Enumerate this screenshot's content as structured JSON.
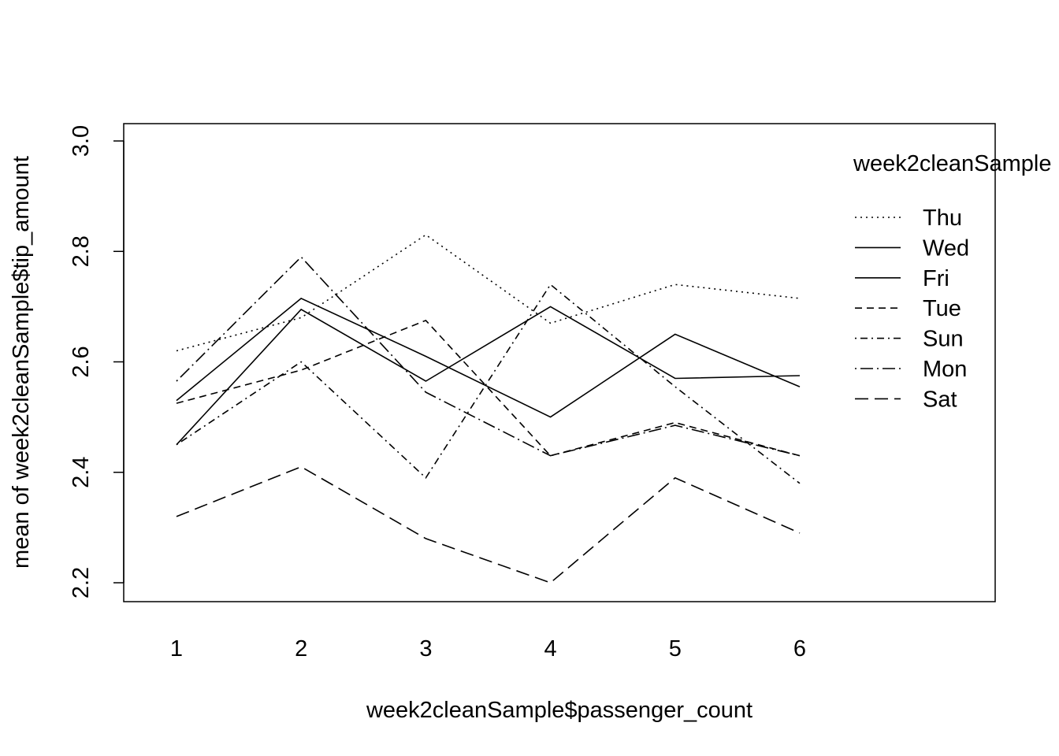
{
  "chart_data": {
    "type": "line",
    "xlabel": "week2cleanSample$passenger_count",
    "ylabel": "mean of  week2cleanSample$tip_amount",
    "x": [
      1,
      2,
      3,
      4,
      5,
      6
    ],
    "x_ticks": [
      "1",
      "2",
      "3",
      "4",
      "5",
      "6"
    ],
    "y_ticks": [
      "2.2",
      "2.4",
      "2.6",
      "2.8",
      "3.0"
    ],
    "ylim": [
      2.2,
      3.0
    ],
    "legend": {
      "title": "week2cleanSample",
      "position": "top-right"
    },
    "series": [
      {
        "name": "Thu",
        "linestyle": "dotted",
        "values": [
          2.62,
          2.68,
          2.83,
          2.67,
          2.74,
          2.715
        ]
      },
      {
        "name": "Wed",
        "linestyle": "solid",
        "values": [
          2.53,
          2.715,
          2.61,
          2.5,
          2.65,
          2.555
        ]
      },
      {
        "name": "Fri",
        "linestyle": "solid",
        "values": [
          2.45,
          2.695,
          2.565,
          2.7,
          2.57,
          2.575
        ]
      },
      {
        "name": "Tue",
        "linestyle": "dashed",
        "values": [
          2.525,
          2.585,
          2.675,
          2.43,
          2.49,
          2.43
        ]
      },
      {
        "name": "Sun",
        "linestyle": "dotdash",
        "values": [
          2.45,
          2.6,
          2.39,
          2.74,
          2.555,
          2.38
        ]
      },
      {
        "name": "Mon",
        "linestyle": "dotdash-long",
        "values": [
          2.565,
          2.79,
          2.545,
          2.43,
          2.485,
          2.43
        ]
      },
      {
        "name": "Sat",
        "linestyle": "longdash",
        "values": [
          2.32,
          2.41,
          2.28,
          2.2,
          2.39,
          2.29
        ]
      }
    ]
  }
}
